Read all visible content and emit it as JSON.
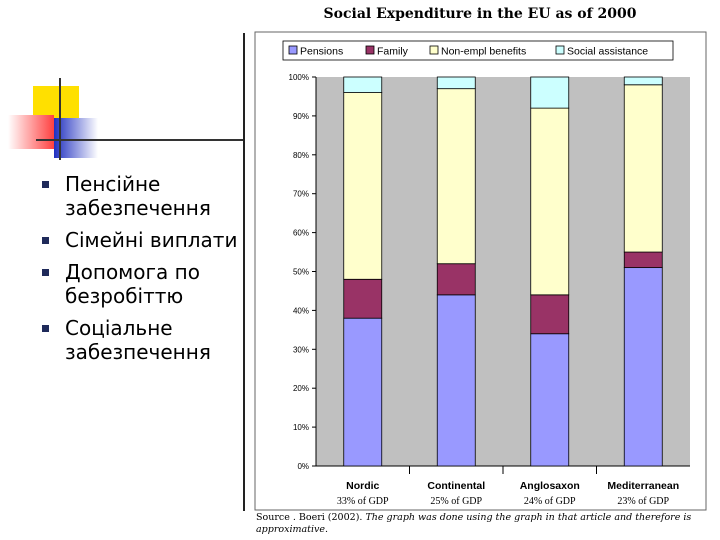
{
  "slide": {
    "bullets": [
      "Пенсійне забезпечення",
      "Сімейні виплати",
      "Допомога по безробіттю",
      "Соціальне забезпечення"
    ]
  },
  "source_note": {
    "prefix": "Source . Boeri (2002).",
    "italic": "The graph was done using the graph in that article and therefore is approximative."
  },
  "chart_data": {
    "type": "bar",
    "stacked": true,
    "percent": true,
    "title": "Social Expenditure in the EU as of 2000",
    "categories": [
      "Nordic",
      "Continental",
      "Anglosaxon",
      "Mediterranean"
    ],
    "category_sublabels": [
      "33% of GDP",
      "25% of GDP",
      "24% of GDP",
      "23% of GDP"
    ],
    "series": [
      {
        "name": "Pensions",
        "color": "#9999ff",
        "values": [
          38,
          44,
          34,
          51
        ]
      },
      {
        "name": "Family",
        "color": "#993366",
        "values": [
          10,
          8,
          10,
          4
        ]
      },
      {
        "name": "Non-empl benefits",
        "color": "#ffffcc",
        "values": [
          48,
          45,
          48,
          43
        ]
      },
      {
        "name": "Social assistance",
        "color": "#ccffff",
        "values": [
          4,
          3,
          8,
          2
        ]
      }
    ],
    "ylim": [
      0,
      100
    ],
    "yticks": [
      "0%",
      "10%",
      "20%",
      "30%",
      "40%",
      "50%",
      "60%",
      "70%",
      "80%",
      "90%",
      "100%"
    ],
    "grid": false,
    "legend": "top",
    "plot_background": "#c0c0c0"
  }
}
